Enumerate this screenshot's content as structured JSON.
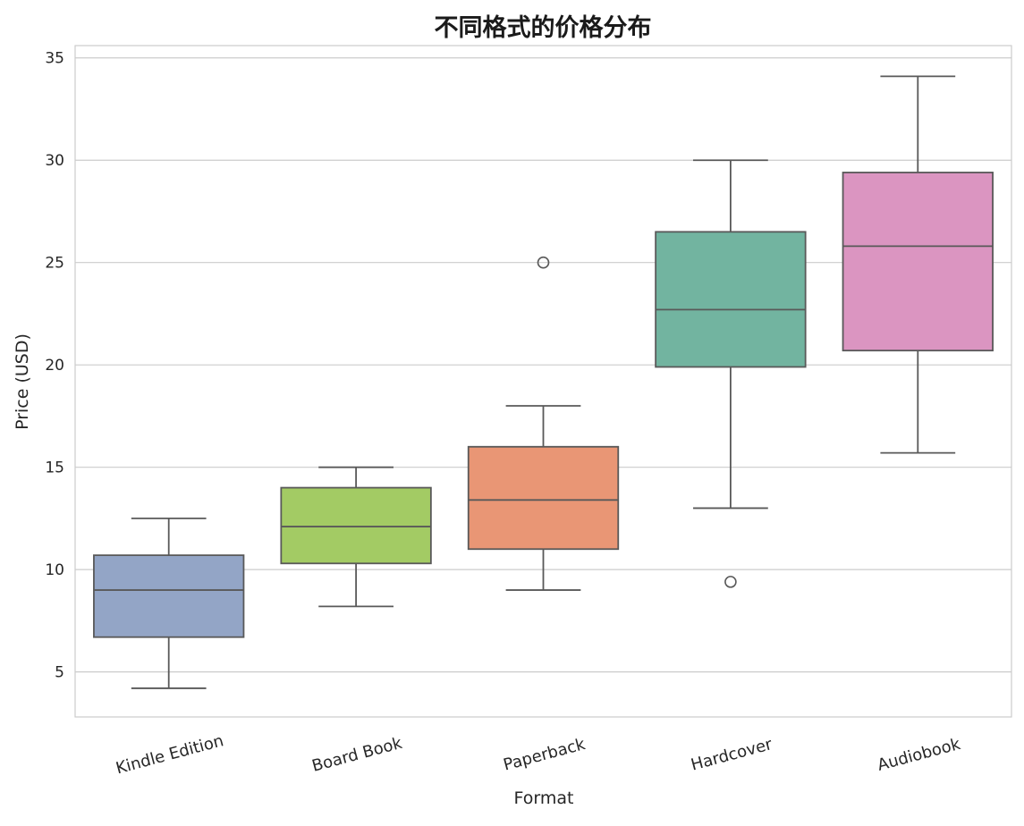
{
  "chart_data": {
    "type": "box",
    "title": "不同格式的价格分布",
    "xlabel": "Format",
    "ylabel": "Price (USD)",
    "ylim": [
      2.8,
      35.6
    ],
    "yticks": [
      5,
      10,
      15,
      20,
      25,
      30,
      35
    ],
    "grid": true,
    "categories": [
      "Kindle Edition",
      "Board Book",
      "Paperback",
      "Hardcover",
      "Audiobook"
    ],
    "boxes": [
      {
        "category": "Kindle Edition",
        "whisker_low": 4.2,
        "q1": 6.7,
        "median": 9.0,
        "q3": 10.7,
        "whisker_high": 12.5,
        "outliers": [],
        "color": "#93a5c6"
      },
      {
        "category": "Board Book",
        "whisker_low": 8.2,
        "q1": 10.3,
        "median": 12.1,
        "q3": 14.0,
        "whisker_high": 15.0,
        "outliers": [],
        "color": "#a3cb64"
      },
      {
        "category": "Paperback",
        "whisker_low": 9.0,
        "q1": 11.0,
        "median": 13.4,
        "q3": 16.0,
        "whisker_high": 18.0,
        "outliers": [
          25.0
        ],
        "color": "#e99675"
      },
      {
        "category": "Hardcover",
        "whisker_low": 13.0,
        "q1": 19.9,
        "median": 22.7,
        "q3": 26.5,
        "whisker_high": 30.0,
        "outliers": [
          9.4
        ],
        "color": "#72b4a0"
      },
      {
        "category": "Audiobook",
        "whisker_low": 15.7,
        "q1": 20.7,
        "median": 25.8,
        "q3": 29.4,
        "whisker_high": 34.1,
        "outliers": [],
        "color": "#db95c1"
      }
    ]
  }
}
